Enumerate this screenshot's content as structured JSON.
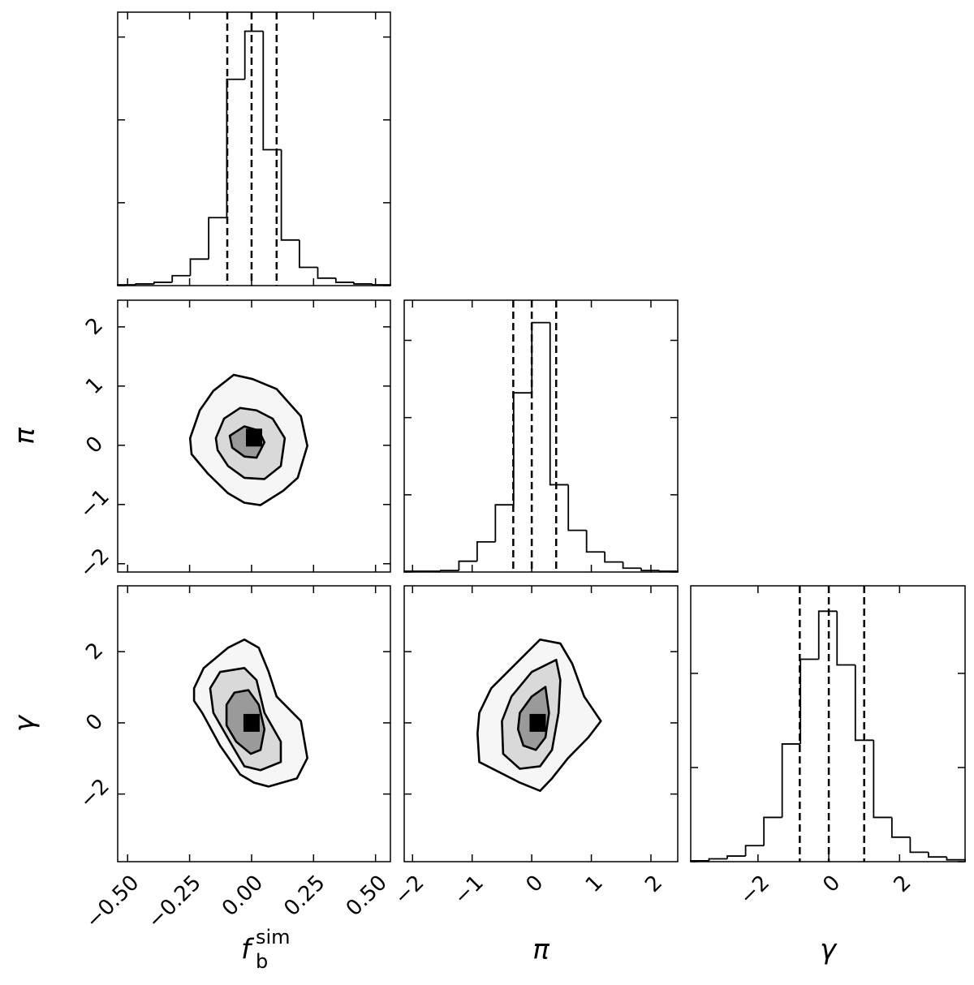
{
  "chart_data": {
    "type": "corner",
    "parameters": [
      {
        "symbol": "f",
        "sub": "b",
        "sup": "sim",
        "lim": [
          -0.54,
          0.56
        ],
        "ticks": [
          {
            "value": -0.5,
            "label": "−0.50"
          },
          {
            "value": -0.25,
            "label": "−0.25"
          },
          {
            "value": 0,
            "label": "0.00"
          },
          {
            "value": 0.25,
            "label": "0.25"
          },
          {
            "value": 0.5,
            "label": "0.50"
          }
        ],
        "bins": [
          -0.54,
          -0.467,
          -0.393,
          -0.32,
          -0.247,
          -0.173,
          -0.1,
          -0.027,
          0.047,
          0.12,
          0.193,
          0.267,
          0.34,
          0.413,
          0.487,
          0.56
        ],
        "counts": [
          1,
          2,
          4,
          12,
          32,
          82,
          249,
          307,
          164,
          55,
          22,
          9,
          4,
          2,
          1
        ],
        "count_lim": [
          0,
          330
        ],
        "count_ticks": [
          0,
          100,
          200,
          300
        ],
        "quantiles": [
          -0.098,
          0,
          0.101
        ]
      },
      {
        "symbol": "π",
        "lim": [
          -2.14,
          2.45
        ],
        "ticks": [
          {
            "value": -2,
            "label": "−2"
          },
          {
            "value": -1,
            "label": "−1"
          },
          0,
          1,
          2
        ],
        "bins": [
          -2.14,
          -1.834,
          -1.528,
          -1.222,
          -0.916,
          -0.61,
          -0.304,
          0.002,
          0.308,
          0.614,
          0.92,
          1.226,
          1.532,
          1.838,
          2.144,
          2.45
        ],
        "counts": [
          1,
          1,
          2,
          14,
          39,
          87,
          232,
          323,
          113,
          54,
          26,
          13,
          5,
          2,
          1
        ],
        "count_lim": [
          0,
          352
        ],
        "count_ticks": [
          0,
          100,
          200,
          300
        ],
        "quantiles": [
          -0.31,
          0,
          0.41
        ]
      },
      {
        "symbol": "γ",
        "lim": [
          -3.9,
          3.85
        ],
        "ticks": [
          {
            "value": -2,
            "label": "−2"
          },
          0,
          2
        ],
        "bins": [
          -3.9,
          -3.383,
          -2.867,
          -2.35,
          -1.833,
          -1.317,
          -0.8,
          -0.283,
          0.233,
          0.75,
          1.267,
          1.783,
          2.3,
          2.817,
          3.333,
          3.85
        ],
        "counts": [
          1,
          3,
          6,
          17,
          47,
          125,
          215,
          266,
          209,
          129,
          47,
          26,
          10,
          5,
          2
        ],
        "count_lim": [
          0,
          293
        ],
        "count_ticks": [
          0,
          100,
          200
        ],
        "quantiles": [
          -0.82,
          0,
          1.0
        ]
      }
    ],
    "pairs": [
      {
        "contours": [
          [
            [
              -0.248,
              0.12
            ],
            [
              -0.209,
              0.59
            ],
            [
              -0.154,
              0.92
            ],
            [
              -0.072,
              1.19
            ],
            [
              0.003,
              1.12
            ],
            [
              0.101,
              0.95
            ],
            [
              0.199,
              0.49
            ],
            [
              0.225,
              -0.01
            ],
            [
              0.186,
              -0.55
            ],
            [
              0.127,
              -0.77
            ],
            [
              0.036,
              -1.01
            ],
            [
              -0.029,
              -0.97
            ],
            [
              -0.095,
              -0.81
            ],
            [
              -0.176,
              -0.48
            ],
            [
              -0.242,
              -0.15
            ]
          ],
          [
            [
              -0.144,
              0.12
            ],
            [
              -0.111,
              0.45
            ],
            [
              -0.046,
              0.63
            ],
            [
              0.02,
              0.59
            ],
            [
              0.085,
              0.45
            ],
            [
              0.134,
              0.12
            ],
            [
              0.118,
              -0.35
            ],
            [
              0.052,
              -0.57
            ],
            [
              -0.029,
              -0.55
            ],
            [
              -0.095,
              -0.35
            ],
            [
              -0.137,
              -0.08
            ]
          ],
          [
            [
              -0.088,
              0.16
            ],
            [
              -0.029,
              0.32
            ],
            [
              0.029,
              0.25
            ],
            [
              0.052,
              0.05
            ],
            [
              0.02,
              -0.21
            ],
            [
              -0.029,
              -0.19
            ],
            [
              -0.078,
              -0.04
            ]
          ]
        ],
        "peak": [
          0.01,
          0.13
        ]
      },
      {
        "contours": [
          [
            [
              -0.232,
              0.97
            ],
            [
              -0.193,
              1.54
            ],
            [
              -0.095,
              2.11
            ],
            [
              -0.029,
              2.34
            ],
            [
              0.029,
              2.11
            ],
            [
              0.069,
              1.43
            ],
            [
              0.101,
              0.74
            ],
            [
              0.199,
              0.05
            ],
            [
              0.225,
              -0.99
            ],
            [
              0.183,
              -1.56
            ],
            [
              0.069,
              -1.79
            ],
            [
              0.01,
              -1.68
            ],
            [
              -0.046,
              -1.45
            ],
            [
              -0.127,
              -0.64
            ],
            [
              -0.199,
              0.28
            ],
            [
              -0.232,
              0.62
            ]
          ],
          [
            [
              -0.167,
              0.97
            ],
            [
              -0.127,
              1.43
            ],
            [
              -0.029,
              1.54
            ],
            [
              0.02,
              1.2
            ],
            [
              0.052,
              0.28
            ],
            [
              0.118,
              -0.53
            ],
            [
              0.118,
              -1.1
            ],
            [
              0.036,
              -1.33
            ],
            [
              -0.029,
              -1.22
            ],
            [
              -0.078,
              -0.64
            ],
            [
              -0.154,
              0.28
            ]
          ],
          [
            [
              -0.101,
              0.51
            ],
            [
              -0.069,
              0.85
            ],
            [
              -0.013,
              0.92
            ],
            [
              0.029,
              0.51
            ],
            [
              0.052,
              -0.18
            ],
            [
              0.036,
              -0.76
            ],
            [
              -0.003,
              -0.87
            ],
            [
              -0.062,
              -0.53
            ],
            [
              -0.101,
              -0.07
            ]
          ]
        ],
        "peak": [
          0,
          0
        ]
      },
      {
        "contours": [
          [
            [
              -0.88,
              0.28
            ],
            [
              -0.68,
              0.97
            ],
            [
              -0.34,
              1.54
            ],
            [
              0.14,
              2.34
            ],
            [
              0.48,
              2.23
            ],
            [
              0.68,
              1.66
            ],
            [
              0.88,
              0.74
            ],
            [
              1.16,
              0.05
            ],
            [
              0.95,
              -0.41
            ],
            [
              0.61,
              -0.99
            ],
            [
              0.34,
              -1.56
            ],
            [
              0.14,
              -1.91
            ],
            [
              -0.2,
              -1.68
            ],
            [
              -0.88,
              -1.1
            ],
            [
              -0.91,
              -0.3
            ]
          ],
          [
            [
              -0.5,
              0.05
            ],
            [
              -0.34,
              0.74
            ],
            [
              0,
              1.43
            ],
            [
              0.41,
              1.77
            ],
            [
              0.48,
              1.2
            ],
            [
              0.45,
              0.28
            ],
            [
              0.34,
              -0.76
            ],
            [
              0.14,
              -1.22
            ],
            [
              -0.2,
              -1.29
            ],
            [
              -0.48,
              -0.87
            ]
          ],
          [
            [
              -0.2,
              0.28
            ],
            [
              0,
              0.74
            ],
            [
              0.23,
              1.01
            ],
            [
              0.29,
              0.28
            ],
            [
              0.23,
              -0.41
            ],
            [
              0.07,
              -0.76
            ],
            [
              -0.14,
              -0.64
            ],
            [
              -0.23,
              -0.18
            ]
          ]
        ],
        "peak": [
          0.1,
          0
        ]
      }
    ]
  }
}
